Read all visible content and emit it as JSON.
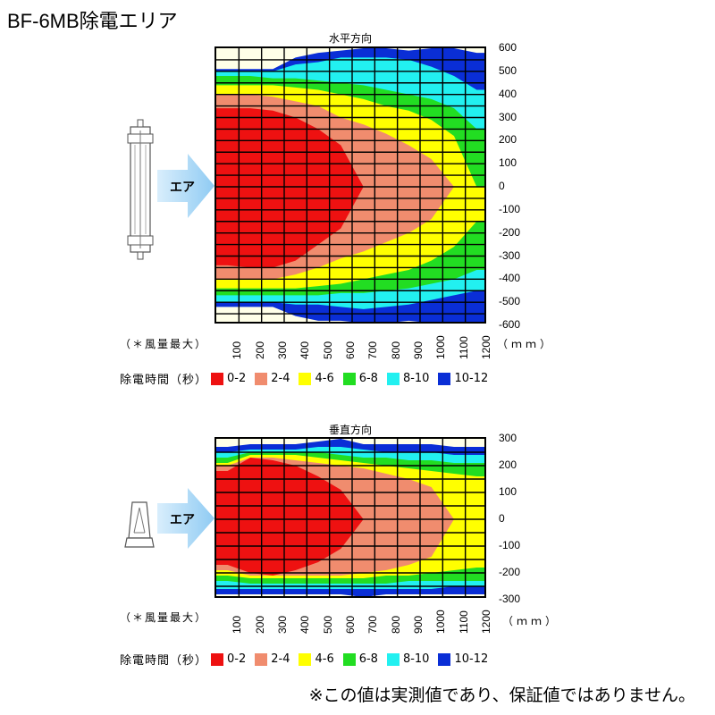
{
  "page_title": "BF-6MB除電エリア",
  "arrow_label": "エア",
  "footnote": "※この値は実測値であり、保証値ではありません。",
  "note_left": "（＊風量最大）",
  "legend_title": "除電時間（秒）",
  "legend": [
    {
      "label": "0-2",
      "color": "#ee1111"
    },
    {
      "label": "2-4",
      "color": "#f08c6e"
    },
    {
      "label": "4-6",
      "color": "#ffff00"
    },
    {
      "label": "6-8",
      "color": "#22dd22"
    },
    {
      "label": "8-10",
      "color": "#22f0f0"
    },
    {
      "label": "10-12",
      "color": "#0a2ed6"
    }
  ],
  "chart_data": [
    {
      "type": "heatmap",
      "title": "水平方向",
      "x_unit": "（ｍｍ）",
      "x_ticks": [
        "100",
        "200",
        "300",
        "400",
        "500",
        "600",
        "700",
        "800",
        "900",
        "1000",
        "1100",
        "1200"
      ],
      "y_ticks": [
        "600",
        "500",
        "400",
        "300",
        "200",
        "100",
        "0",
        "-100",
        "-200",
        "-300",
        "-400",
        "-500",
        "-600"
      ],
      "xlim": [
        0,
        1200
      ],
      "ylim": [
        -600,
        600
      ],
      "grid": true,
      "legend_placement": "bottom",
      "bands_upper_y": [
        {
          "range": "0-2",
          "y": [
            340,
            340,
            330,
            300,
            250,
            180,
            0,
            0,
            0,
            0,
            0,
            0
          ]
        },
        {
          "range": "2-4",
          "y": [
            400,
            400,
            390,
            370,
            350,
            300,
            270,
            230,
            180,
            120,
            0,
            0
          ]
        },
        {
          "range": "4-6",
          "y": [
            440,
            440,
            440,
            430,
            420,
            400,
            380,
            350,
            330,
            290,
            220,
            0
          ]
        },
        {
          "range": "6-8",
          "y": [
            480,
            480,
            470,
            470,
            460,
            450,
            440,
            420,
            400,
            380,
            340,
            250
          ]
        },
        {
          "range": "8-10",
          "y": [
            500,
            500,
            500,
            530,
            540,
            560,
            560,
            560,
            550,
            520,
            480,
            420
          ]
        },
        {
          "range": "10-12",
          "y": [
            510,
            510,
            510,
            560,
            580,
            590,
            600,
            600,
            590,
            600,
            600,
            580
          ]
        }
      ],
      "bands_lower_y": [
        {
          "range": "0-2",
          "y": [
            -340,
            -350,
            -350,
            -320,
            -250,
            -180,
            0,
            0,
            0,
            0,
            0,
            0
          ]
        },
        {
          "range": "2-4",
          "y": [
            -400,
            -400,
            -400,
            -380,
            -350,
            -310,
            -280,
            -240,
            -200,
            -140,
            0,
            0
          ]
        },
        {
          "range": "4-6",
          "y": [
            -440,
            -440,
            -440,
            -440,
            -430,
            -420,
            -400,
            -380,
            -360,
            -320,
            -260,
            -150
          ]
        },
        {
          "range": "6-8",
          "y": [
            -470,
            -470,
            -470,
            -470,
            -470,
            -460,
            -460,
            -450,
            -440,
            -420,
            -400,
            -360
          ]
        },
        {
          "range": "8-10",
          "y": [
            -500,
            -500,
            -500,
            -510,
            -510,
            -520,
            -530,
            -520,
            -510,
            -490,
            -470,
            -450
          ]
        },
        {
          "range": "10-12",
          "y": [
            -520,
            -520,
            -520,
            -560,
            -580,
            -580,
            -590,
            -590,
            -580,
            -590,
            -600,
            -600
          ]
        }
      ]
    },
    {
      "type": "heatmap",
      "title": "垂直方向",
      "x_unit": "（ｍｍ）",
      "x_ticks": [
        "100",
        "200",
        "300",
        "400",
        "500",
        "600",
        "700",
        "800",
        "900",
        "1000",
        "1100",
        "1200"
      ],
      "y_ticks": [
        "300",
        "200",
        "100",
        "0",
        "-100",
        "-200",
        "-300"
      ],
      "xlim": [
        0,
        1200
      ],
      "ylim": [
        -300,
        300
      ],
      "grid": true,
      "legend_placement": "bottom",
      "bands_upper_y": [
        {
          "range": "0-2",
          "y": [
            180,
            230,
            220,
            200,
            160,
            110,
            0,
            0,
            0,
            0,
            0,
            0
          ]
        },
        {
          "range": "2-4",
          "y": [
            200,
            230,
            230,
            220,
            210,
            200,
            190,
            170,
            150,
            120,
            0,
            0
          ]
        },
        {
          "range": "4-6",
          "y": [
            210,
            240,
            240,
            240,
            230,
            220,
            210,
            200,
            190,
            180,
            170,
            160
          ]
        },
        {
          "range": "6-8",
          "y": [
            230,
            250,
            250,
            250,
            250,
            240,
            230,
            230,
            220,
            220,
            210,
            210
          ]
        },
        {
          "range": "8-10",
          "y": [
            250,
            260,
            260,
            260,
            270,
            270,
            260,
            250,
            250,
            250,
            240,
            240
          ]
        },
        {
          "range": "10-12",
          "y": [
            270,
            280,
            280,
            280,
            290,
            300,
            280,
            280,
            280,
            280,
            270,
            270
          ]
        }
      ],
      "bands_lower_y": [
        {
          "range": "0-2",
          "y": [
            -170,
            -200,
            -210,
            -190,
            -160,
            -110,
            0,
            0,
            0,
            0,
            0,
            0
          ]
        },
        {
          "range": "2-4",
          "y": [
            -190,
            -210,
            -210,
            -210,
            -210,
            -210,
            -200,
            -190,
            -170,
            -140,
            0,
            0
          ]
        },
        {
          "range": "4-6",
          "y": [
            -210,
            -220,
            -220,
            -220,
            -220,
            -220,
            -220,
            -210,
            -210,
            -200,
            -190,
            -180
          ]
        },
        {
          "range": "6-8",
          "y": [
            -230,
            -240,
            -240,
            -240,
            -240,
            -240,
            -240,
            -240,
            -230,
            -230,
            -230,
            -230
          ]
        },
        {
          "range": "8-10",
          "y": [
            -260,
            -260,
            -260,
            -260,
            -260,
            -260,
            -260,
            -260,
            -260,
            -260,
            -250,
            -250
          ]
        },
        {
          "range": "10-12",
          "y": [
            -280,
            -280,
            -280,
            -280,
            -280,
            -280,
            -290,
            -280,
            -280,
            -280,
            -280,
            -280
          ]
        }
      ]
    }
  ]
}
